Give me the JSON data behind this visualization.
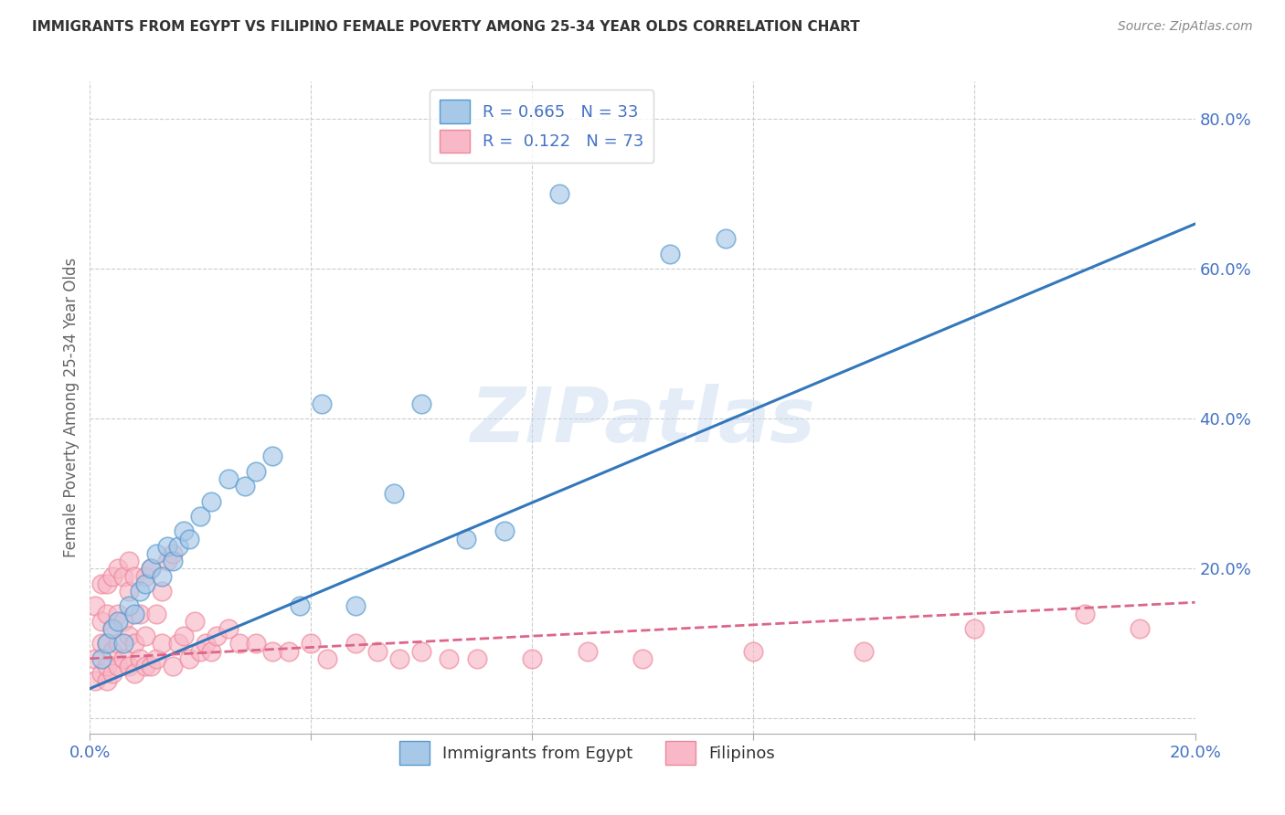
{
  "title": "IMMIGRANTS FROM EGYPT VS FILIPINO FEMALE POVERTY AMONG 25-34 YEAR OLDS CORRELATION CHART",
  "source": "Source: ZipAtlas.com",
  "ylabel": "Female Poverty Among 25-34 Year Olds",
  "xlim": [
    0.0,
    0.2
  ],
  "ylim": [
    -0.02,
    0.85
  ],
  "legend_r1": "R = 0.665",
  "legend_n1": "N = 33",
  "legend_r2": "R =  0.122",
  "legend_n2": "N = 73",
  "blue_color": "#a8c8e8",
  "pink_color": "#f8b8c8",
  "blue_edge_color": "#5599cc",
  "pink_edge_color": "#ee8899",
  "blue_line_color": "#3377bb",
  "pink_line_color": "#dd6688",
  "watermark": "ZIPatlas",
  "blue_scatter_x": [
    0.002,
    0.003,
    0.004,
    0.005,
    0.006,
    0.007,
    0.008,
    0.009,
    0.01,
    0.011,
    0.012,
    0.013,
    0.014,
    0.015,
    0.016,
    0.017,
    0.018,
    0.02,
    0.022,
    0.025,
    0.028,
    0.03,
    0.033,
    0.038,
    0.042,
    0.048,
    0.055,
    0.06,
    0.068,
    0.075,
    0.085,
    0.105,
    0.115
  ],
  "blue_scatter_y": [
    0.08,
    0.1,
    0.12,
    0.13,
    0.1,
    0.15,
    0.14,
    0.17,
    0.18,
    0.2,
    0.22,
    0.19,
    0.23,
    0.21,
    0.23,
    0.25,
    0.24,
    0.27,
    0.29,
    0.32,
    0.31,
    0.33,
    0.35,
    0.15,
    0.42,
    0.15,
    0.3,
    0.42,
    0.24,
    0.25,
    0.7,
    0.62,
    0.64
  ],
  "pink_scatter_x": [
    0.001,
    0.001,
    0.001,
    0.002,
    0.002,
    0.002,
    0.002,
    0.003,
    0.003,
    0.003,
    0.003,
    0.003,
    0.004,
    0.004,
    0.004,
    0.004,
    0.005,
    0.005,
    0.005,
    0.005,
    0.006,
    0.006,
    0.006,
    0.007,
    0.007,
    0.007,
    0.007,
    0.008,
    0.008,
    0.008,
    0.009,
    0.009,
    0.01,
    0.01,
    0.01,
    0.011,
    0.011,
    0.012,
    0.012,
    0.013,
    0.013,
    0.014,
    0.015,
    0.015,
    0.016,
    0.017,
    0.018,
    0.019,
    0.02,
    0.021,
    0.022,
    0.023,
    0.025,
    0.027,
    0.03,
    0.033,
    0.036,
    0.04,
    0.043,
    0.048,
    0.052,
    0.056,
    0.06,
    0.065,
    0.07,
    0.08,
    0.09,
    0.1,
    0.12,
    0.14,
    0.16,
    0.18,
    0.19
  ],
  "pink_scatter_y": [
    0.05,
    0.08,
    0.15,
    0.06,
    0.1,
    0.13,
    0.18,
    0.05,
    0.07,
    0.1,
    0.14,
    0.18,
    0.06,
    0.09,
    0.12,
    0.19,
    0.07,
    0.1,
    0.14,
    0.2,
    0.08,
    0.13,
    0.19,
    0.07,
    0.11,
    0.17,
    0.21,
    0.06,
    0.1,
    0.19,
    0.08,
    0.14,
    0.07,
    0.11,
    0.19,
    0.07,
    0.2,
    0.08,
    0.14,
    0.1,
    0.17,
    0.21,
    0.07,
    0.22,
    0.1,
    0.11,
    0.08,
    0.13,
    0.09,
    0.1,
    0.09,
    0.11,
    0.12,
    0.1,
    0.1,
    0.09,
    0.09,
    0.1,
    0.08,
    0.1,
    0.09,
    0.08,
    0.09,
    0.08,
    0.08,
    0.08,
    0.09,
    0.08,
    0.09,
    0.09,
    0.12,
    0.14,
    0.12
  ]
}
